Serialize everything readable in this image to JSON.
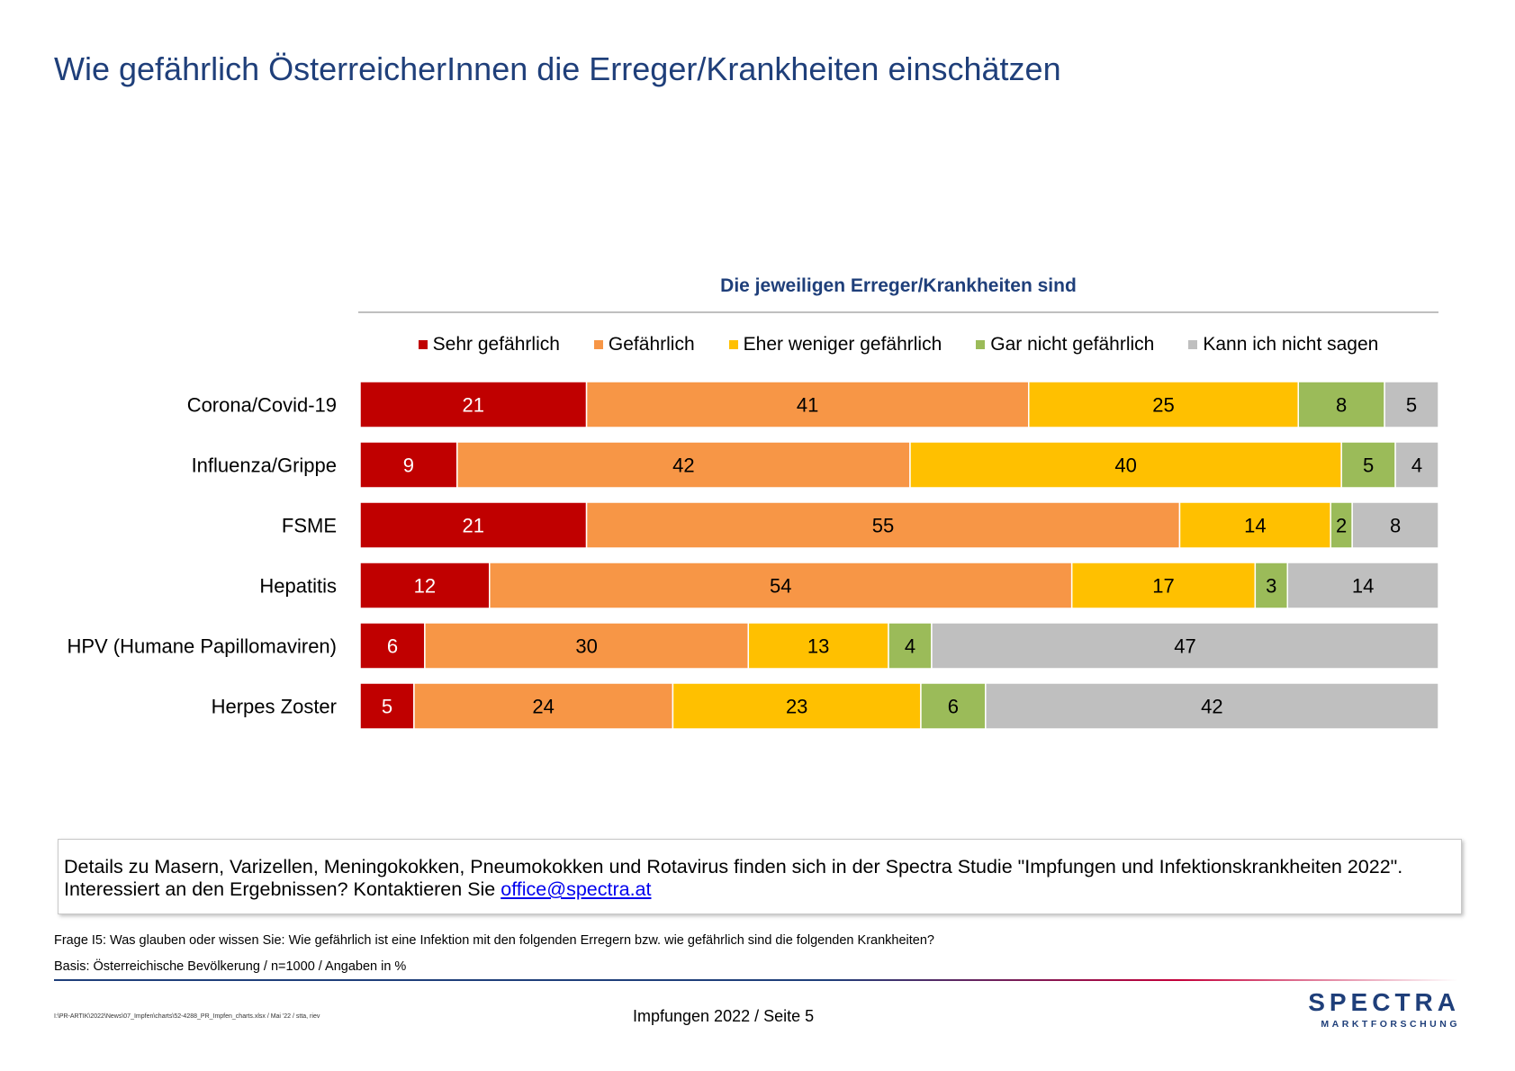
{
  "title": "Wie gefährlich ÖsterreicherInnen die Erreger/Krankheiten einschätzen",
  "chart_data": {
    "type": "bar",
    "orientation": "horizontal",
    "stacked": true,
    "title": "Die jeweiligen Erreger/Krankheiten sind",
    "legend_position": "top",
    "categories": [
      "Corona/Covid-19",
      "Influenza/Grippe",
      "FSME",
      "Hepatitis",
      "HPV (Humane Papillomaviren)",
      "Herpes Zoster"
    ],
    "series": [
      {
        "name": "Sehr gefährlich",
        "color": "#c00000",
        "values": [
          21,
          9,
          21,
          12,
          6,
          5
        ]
      },
      {
        "name": "Gefährlich",
        "color": "#f79646",
        "values": [
          41,
          42,
          55,
          54,
          30,
          24
        ]
      },
      {
        "name": "Eher weniger gefährlich",
        "color": "#ffc000",
        "values": [
          25,
          40,
          14,
          17,
          13,
          23
        ]
      },
      {
        "name": "Gar nicht gefährlich",
        "color": "#9bbb59",
        "values": [
          8,
          5,
          2,
          3,
          4,
          6
        ]
      },
      {
        "name": "Kann ich nicht sagen",
        "color": "#bfbfbf",
        "values": [
          5,
          4,
          8,
          14,
          47,
          42
        ]
      }
    ]
  },
  "note": {
    "line1": "Details zu Masern, Varizellen, Meningokokken, Pneumokokken und Rotavirus finden sich in der Spectra Studie \"Impfungen und Infektionskrankheiten 2022\".",
    "line2_prefix": "Interessiert an den Ergebnissen? Kontaktieren Sie ",
    "email": "office@spectra.at"
  },
  "question": "Frage I5: Was glauben oder wissen Sie: Wie gefährlich ist eine Infektion mit den folgenden Erregern bzw. wie gefährlich sind die folgenden Krankheiten?",
  "basis": "Basis: Österreichische Bevölkerung / n=1000 / Angaben in %",
  "filepath": "I:\\PR-ARTIK\\2022\\News\\07_Impfen\\charts\\52-4288_PR_Impfen_charts.xlsx / Mai '22 / stta, riev",
  "footer": "Impfungen 2022  /  Seite  5",
  "logo": {
    "name": "SPECTRA",
    "sub": "MARKTFORSCHUNG"
  }
}
